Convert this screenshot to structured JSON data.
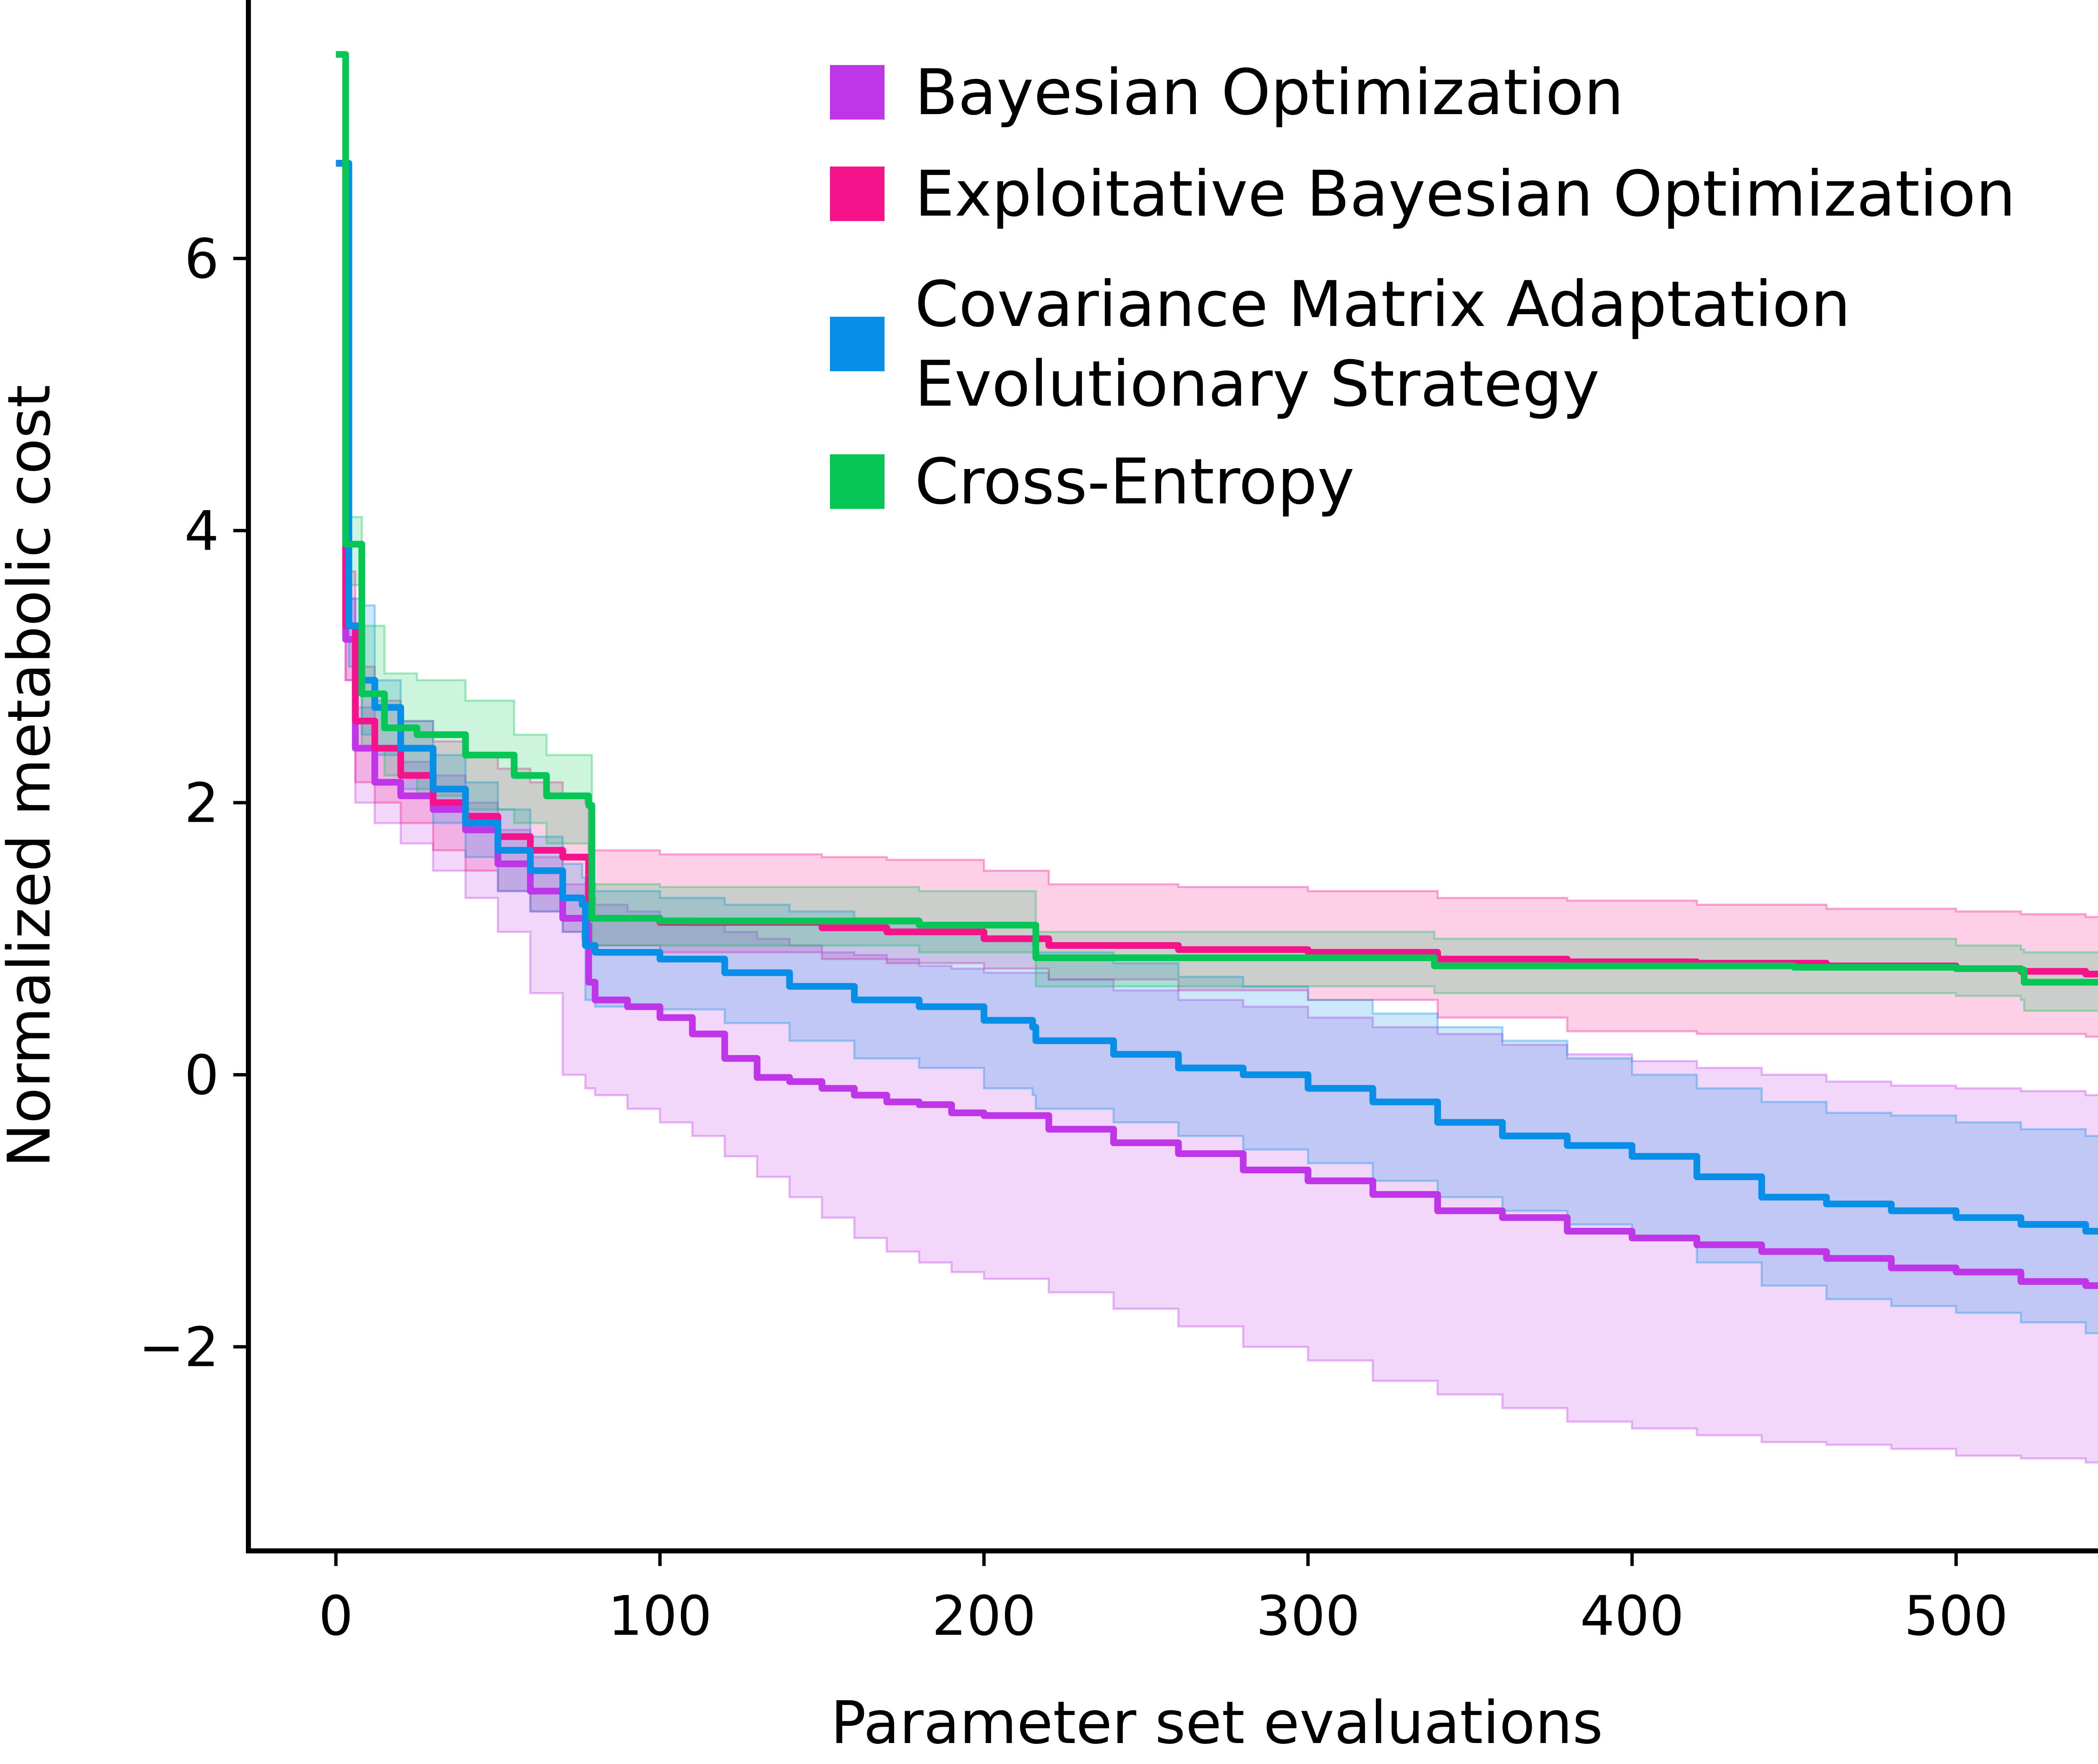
{
  "chart_data": {
    "type": "line",
    "title": "",
    "xlabel": "Parameter set evaluations",
    "ylabel": "Normalized metabolic cost",
    "xlim": [
      -27,
      575
    ],
    "ylim": [
      -3.5,
      7.9
    ],
    "xticks": [
      0,
      100,
      200,
      300,
      400,
      500
    ],
    "yticks": [
      -2,
      0,
      2,
      4,
      6
    ],
    "xtick_labels": [
      "0",
      "100",
      "200",
      "300",
      "400",
      "500"
    ],
    "ytick_labels": [
      "−2",
      "0",
      "2",
      "4",
      "6"
    ],
    "grid": false,
    "legend": {
      "placement": "top-right"
    },
    "series": [
      {
        "name": "Bayesian Optimization",
        "color": "#bf36e8",
        "x": [
          0,
          3,
          6,
          12,
          20,
          30,
          40,
          50,
          60,
          70,
          77,
          78,
          80,
          90,
          100,
          110,
          120,
          130,
          140,
          150,
          160,
          170,
          180,
          190,
          200,
          220,
          240,
          260,
          280,
          300,
          320,
          340,
          360,
          380,
          400,
          420,
          440,
          460,
          480,
          500,
          520,
          540,
          548
        ],
        "mean": [
          6.7,
          3.2,
          2.4,
          2.15,
          2.05,
          1.95,
          1.8,
          1.55,
          1.35,
          1.15,
          1.1,
          0.68,
          0.55,
          0.5,
          0.42,
          0.3,
          0.12,
          -0.02,
          -0.05,
          -0.1,
          -0.15,
          -0.2,
          -0.22,
          -0.28,
          -0.3,
          -0.4,
          -0.5,
          -0.58,
          -0.7,
          -0.78,
          -0.88,
          -1.0,
          -1.05,
          -1.15,
          -1.2,
          -1.25,
          -1.3,
          -1.35,
          -1.42,
          -1.45,
          -1.52,
          -1.55,
          -1.6
        ],
        "upper": [
          6.7,
          3.5,
          2.7,
          2.4,
          2.3,
          2.2,
          2.0,
          1.8,
          1.6,
          1.4,
          1.3,
          1.3,
          1.25,
          1.2,
          1.15,
          1.1,
          1.05,
          1.0,
          0.95,
          0.9,
          0.88,
          0.85,
          0.8,
          0.78,
          0.75,
          0.7,
          0.62,
          0.55,
          0.5,
          0.42,
          0.35,
          0.3,
          0.22,
          0.15,
          0.1,
          0.05,
          0.0,
          -0.05,
          -0.08,
          -0.1,
          -0.12,
          -0.15,
          -0.18
        ],
        "lower": [
          6.7,
          2.9,
          2.0,
          1.85,
          1.7,
          1.5,
          1.3,
          1.05,
          0.6,
          0.0,
          -0.1,
          -0.1,
          -0.15,
          -0.25,
          -0.35,
          -0.45,
          -0.6,
          -0.75,
          -0.9,
          -1.05,
          -1.2,
          -1.3,
          -1.38,
          -1.45,
          -1.5,
          -1.6,
          -1.72,
          -1.85,
          -2.0,
          -2.1,
          -2.25,
          -2.35,
          -2.45,
          -2.55,
          -2.6,
          -2.65,
          -2.7,
          -2.72,
          -2.75,
          -2.8,
          -2.82,
          -2.85,
          -2.9
        ]
      },
      {
        "name": "Exploitative Bayesian Optimization",
        "color": "#f5138c",
        "x": [
          0,
          3,
          6,
          12,
          20,
          30,
          40,
          50,
          60,
          70,
          77,
          78,
          100,
          150,
          170,
          200,
          220,
          260,
          300,
          340,
          380,
          420,
          460,
          500,
          520,
          540,
          548
        ],
        "mean": [
          6.7,
          3.3,
          2.6,
          2.4,
          2.2,
          2.0,
          1.9,
          1.75,
          1.65,
          1.6,
          1.6,
          1.15,
          1.12,
          1.08,
          1.05,
          1.0,
          0.95,
          0.92,
          0.9,
          0.85,
          0.83,
          0.82,
          0.8,
          0.78,
          0.76,
          0.74,
          0.73
        ],
        "upper": [
          6.7,
          3.7,
          3.0,
          2.75,
          2.6,
          2.45,
          2.35,
          2.25,
          2.15,
          2.05,
          2.0,
          1.65,
          1.62,
          1.6,
          1.58,
          1.5,
          1.4,
          1.38,
          1.35,
          1.3,
          1.28,
          1.25,
          1.22,
          1.2,
          1.18,
          1.16,
          1.15
        ],
        "lower": [
          6.7,
          2.9,
          2.15,
          2.0,
          1.85,
          1.65,
          1.5,
          1.35,
          1.2,
          1.05,
          1.0,
          0.95,
          0.9,
          0.85,
          0.82,
          0.78,
          0.7,
          0.62,
          0.55,
          0.42,
          0.32,
          0.3,
          0.3,
          0.3,
          0.3,
          0.28,
          0.27
        ]
      },
      {
        "name": "Covariance Matrix Adaptation Evolutionary Strategy",
        "color": "#078ee6",
        "x": [
          0,
          4,
          8,
          12,
          20,
          30,
          40,
          50,
          60,
          70,
          76,
          77,
          80,
          100,
          120,
          140,
          160,
          180,
          200,
          215,
          216,
          240,
          260,
          280,
          300,
          320,
          340,
          360,
          380,
          400,
          420,
          440,
          460,
          480,
          500,
          520,
          540,
          548
        ],
        "mean": [
          6.7,
          3.3,
          2.9,
          2.7,
          2.4,
          2.1,
          1.85,
          1.65,
          1.5,
          1.3,
          1.25,
          0.95,
          0.9,
          0.85,
          0.75,
          0.65,
          0.55,
          0.5,
          0.4,
          0.35,
          0.25,
          0.15,
          0.05,
          0.0,
          -0.1,
          -0.2,
          -0.35,
          -0.45,
          -0.52,
          -0.6,
          -0.75,
          -0.9,
          -0.95,
          -1.0,
          -1.05,
          -1.1,
          -1.15,
          -1.2
        ],
        "upper": [
          6.7,
          3.5,
          3.45,
          2.9,
          2.6,
          2.35,
          2.15,
          1.95,
          1.75,
          1.55,
          1.45,
          1.4,
          1.35,
          1.3,
          1.25,
          1.2,
          1.15,
          1.1,
          1.0,
          0.95,
          0.9,
          0.82,
          0.72,
          0.65,
          0.55,
          0.45,
          0.35,
          0.25,
          0.12,
          0.0,
          -0.1,
          -0.2,
          -0.28,
          -0.3,
          -0.35,
          -0.4,
          -0.45,
          -0.48
        ],
        "lower": [
          6.7,
          3.0,
          2.5,
          2.35,
          2.1,
          1.85,
          1.6,
          1.35,
          1.2,
          1.05,
          1.0,
          0.55,
          0.5,
          0.48,
          0.38,
          0.25,
          0.12,
          0.05,
          -0.1,
          -0.15,
          -0.25,
          -0.35,
          -0.45,
          -0.55,
          -0.65,
          -0.78,
          -0.9,
          -1.0,
          -1.1,
          -1.2,
          -1.38,
          -1.55,
          -1.65,
          -1.7,
          -1.75,
          -1.82,
          -1.9,
          -1.95
        ]
      },
      {
        "name": "Cross-Entropy",
        "color": "#06c655",
        "x": [
          0,
          3,
          8,
          15,
          25,
          40,
          55,
          65,
          78,
          79,
          100,
          150,
          180,
          215,
          216,
          250,
          300,
          338,
          339,
          400,
          450,
          500,
          520,
          521,
          548
        ],
        "mean": [
          7.5,
          3.9,
          2.8,
          2.55,
          2.5,
          2.35,
          2.2,
          2.05,
          1.98,
          1.15,
          1.13,
          1.13,
          1.1,
          1.1,
          0.86,
          0.86,
          0.86,
          0.86,
          0.8,
          0.8,
          0.79,
          0.78,
          0.77,
          0.68,
          0.68
        ],
        "upper": [
          7.5,
          4.1,
          3.3,
          2.95,
          2.9,
          2.75,
          2.5,
          2.35,
          2.35,
          1.4,
          1.38,
          1.38,
          1.35,
          1.35,
          1.05,
          1.05,
          1.05,
          1.05,
          1.0,
          1.0,
          1.0,
          0.95,
          0.92,
          0.9,
          0.9
        ],
        "lower": [
          7.5,
          3.6,
          2.4,
          2.2,
          2.05,
          1.95,
          1.85,
          1.7,
          1.6,
          0.95,
          0.95,
          0.95,
          0.9,
          0.9,
          0.65,
          0.65,
          0.65,
          0.65,
          0.6,
          0.6,
          0.6,
          0.58,
          0.55,
          0.47,
          0.45
        ]
      }
    ]
  }
}
